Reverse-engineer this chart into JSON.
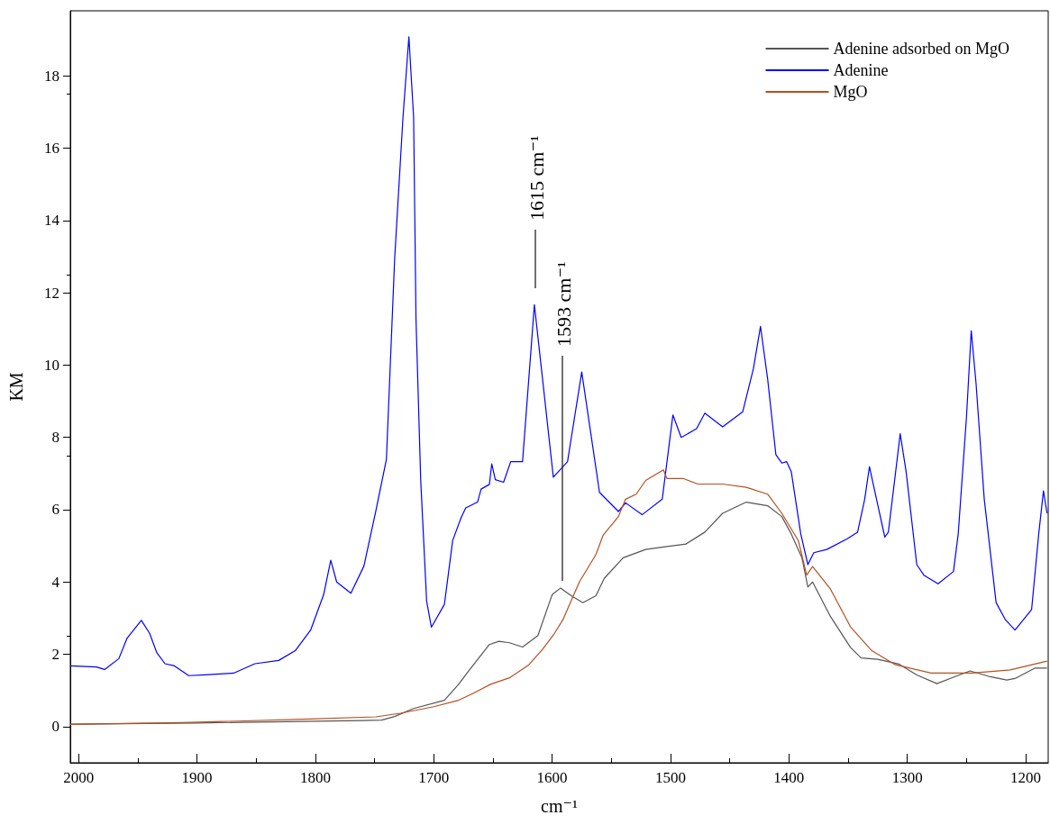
{
  "chart_data": {
    "type": "line",
    "xlabel": "cm⁻¹",
    "ylabel": "KM",
    "xlim": [
      2007,
      1181
    ],
    "xticks": [
      2000,
      1900,
      1800,
      1700,
      1600,
      1500,
      1400,
      1300,
      1200
    ],
    "ylim": [
      -1,
      19.8
    ],
    "yticks": [
      0,
      2,
      4,
      6,
      8,
      10,
      12,
      14,
      16,
      18
    ],
    "grid": false,
    "legend": "top right",
    "marker": "none",
    "line_style": "solid",
    "annotations": [
      "1615 cm⁻¹",
      "1593 cm⁻¹"
    ],
    "series": [
      {
        "name": "Adenine adsorbed on MgO",
        "color": "#555555",
        "x": [
          2007,
          1900,
          1800,
          1760,
          1744,
          1733,
          1717,
          1691,
          1679,
          1671,
          1653,
          1645,
          1636,
          1625,
          1612,
          1600,
          1593,
          1583,
          1574,
          1563,
          1556,
          1540,
          1521,
          1503,
          1487,
          1471,
          1456,
          1436,
          1418,
          1406,
          1398,
          1389,
          1384,
          1380,
          1365,
          1348,
          1339,
          1325,
          1307,
          1292,
          1275,
          1260,
          1247,
          1230,
          1216,
          1209,
          1192,
          1182
        ],
        "values": [
          0.07,
          0.1,
          0.15,
          0.17,
          0.18,
          0.28,
          0.5,
          0.73,
          1.17,
          1.52,
          2.27,
          2.36,
          2.32,
          2.2,
          2.52,
          3.65,
          3.83,
          3.6,
          3.43,
          3.62,
          4.1,
          4.67,
          4.9,
          4.98,
          5.05,
          5.38,
          5.9,
          6.21,
          6.11,
          5.81,
          5.33,
          4.67,
          3.86,
          4.0,
          3.05,
          2.19,
          1.9,
          1.86,
          1.73,
          1.43,
          1.19,
          1.38,
          1.54,
          1.38,
          1.29,
          1.33,
          1.62,
          1.62
        ]
      },
      {
        "name": "Adenine",
        "color": "#0000ff",
        "x": [
          2007,
          1985,
          1978,
          1966,
          1959,
          1947,
          1940,
          1934,
          1927,
          1919,
          1907,
          1893,
          1869,
          1851,
          1831,
          1817,
          1804,
          1793,
          1787,
          1782,
          1770,
          1759,
          1749,
          1740,
          1733,
          1726,
          1721,
          1717,
          1715,
          1711,
          1706,
          1702,
          1691,
          1684,
          1677,
          1673,
          1663,
          1660,
          1653,
          1651,
          1648,
          1641,
          1635,
          1625,
          1615,
          1599,
          1587,
          1575,
          1560,
          1544,
          1538,
          1524,
          1507,
          1498,
          1491,
          1478,
          1471,
          1456,
          1439,
          1430,
          1424,
          1418,
          1411,
          1406,
          1402,
          1398,
          1390,
          1384,
          1379,
          1368,
          1351,
          1342,
          1336,
          1332,
          1326,
          1319,
          1316,
          1306,
          1301,
          1292,
          1286,
          1274,
          1261,
          1257,
          1250,
          1246,
          1242,
          1235,
          1225,
          1217,
          1209,
          1195,
          1189,
          1185,
          1182
        ],
        "values": [
          1.68,
          1.65,
          1.58,
          1.88,
          2.45,
          2.94,
          2.58,
          2.05,
          1.74,
          1.68,
          1.41,
          1.43,
          1.48,
          1.74,
          1.83,
          2.1,
          2.67,
          3.65,
          4.6,
          4.0,
          3.69,
          4.44,
          5.95,
          7.39,
          12.96,
          16.85,
          19.08,
          16.85,
          11.28,
          6.8,
          3.47,
          2.75,
          3.38,
          5.15,
          5.77,
          6.05,
          6.21,
          6.57,
          6.7,
          7.27,
          6.83,
          6.76,
          7.33,
          7.33,
          11.67,
          6.9,
          7.33,
          9.81,
          6.48,
          5.95,
          6.19,
          5.86,
          6.29,
          8.62,
          8.0,
          8.24,
          8.67,
          8.29,
          8.71,
          9.9,
          11.07,
          9.62,
          7.52,
          7.29,
          7.33,
          7.05,
          5.33,
          4.48,
          4.81,
          4.9,
          5.19,
          5.38,
          6.29,
          7.19,
          6.29,
          5.24,
          5.38,
          8.1,
          7.05,
          4.48,
          4.19,
          3.95,
          4.29,
          5.33,
          8.57,
          10.95,
          9.52,
          6.29,
          3.43,
          2.95,
          2.67,
          3.24,
          5.33,
          6.52,
          5.9
        ]
      },
      {
        "name": "MgO",
        "color": "#b5501e",
        "x": [
          2007,
          1912,
          1804,
          1749,
          1728,
          1700,
          1679,
          1668,
          1652,
          1636,
          1620,
          1608,
          1598,
          1591,
          1577,
          1563,
          1557,
          1544,
          1538,
          1529,
          1521,
          1506,
          1503,
          1489,
          1477,
          1456,
          1436,
          1418,
          1406,
          1392,
          1385,
          1380,
          1365,
          1348,
          1330,
          1310,
          1280,
          1245,
          1213,
          1182
        ],
        "values": [
          0.06,
          0.11,
          0.21,
          0.27,
          0.37,
          0.55,
          0.73,
          0.9,
          1.17,
          1.35,
          1.7,
          2.14,
          2.58,
          2.95,
          4.0,
          4.76,
          5.29,
          5.81,
          6.29,
          6.43,
          6.81,
          7.1,
          6.86,
          6.86,
          6.71,
          6.71,
          6.62,
          6.43,
          5.9,
          5.14,
          4.19,
          4.43,
          3.81,
          2.76,
          2.1,
          1.71,
          1.48,
          1.48,
          1.57,
          1.81
        ]
      }
    ]
  }
}
